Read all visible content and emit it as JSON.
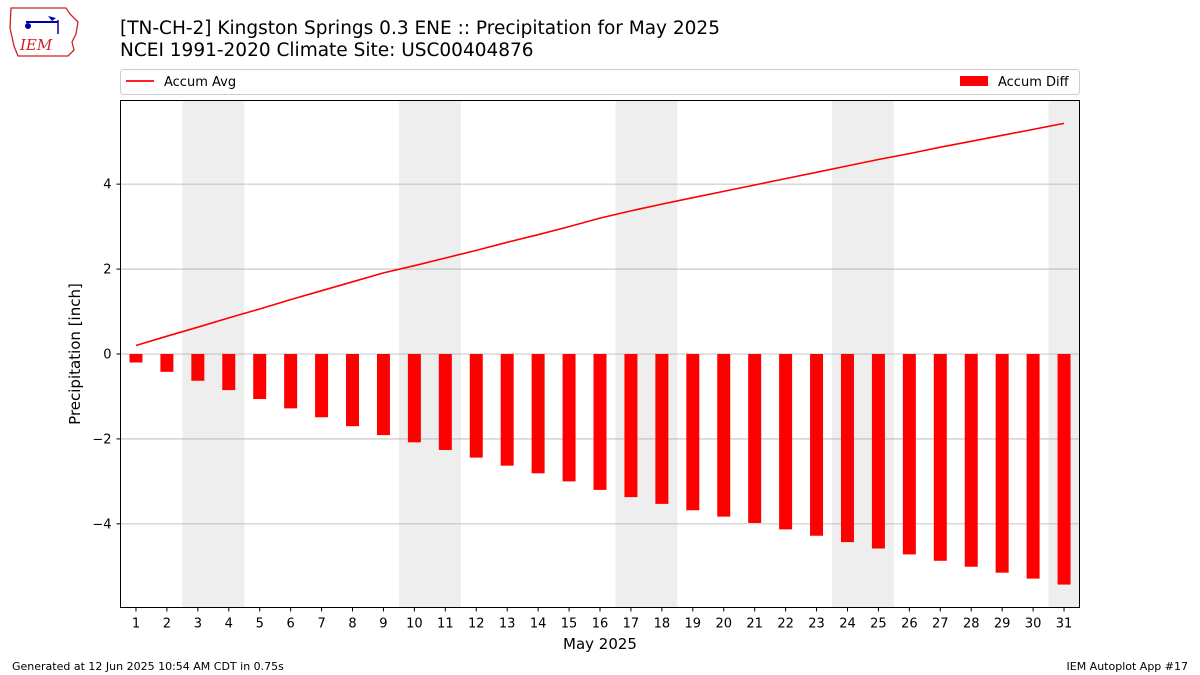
{
  "header": {
    "title_line1": "[TN-CH-2] Kingston Springs 0.3 ENE :: Precipitation for May 2025",
    "title_line2": "NCEI 1991-2020 Climate Site: USC00404876"
  },
  "logo": {
    "text": "IEM"
  },
  "footer": {
    "left": "Generated at 12 Jun 2025 10:54 AM CDT in 0.75s",
    "right": "IEM Autoplot App #17"
  },
  "colors": {
    "series": "#ff0000",
    "weekend_band": "#eeeeee",
    "grid": "#b0b0b0"
  },
  "chart_data": {
    "type": "bar",
    "xlabel": "May 2025",
    "ylabel": "Precipitation [inch]",
    "x": [
      1,
      2,
      3,
      4,
      5,
      6,
      7,
      8,
      9,
      10,
      11,
      12,
      13,
      14,
      15,
      16,
      17,
      18,
      19,
      20,
      21,
      22,
      23,
      24,
      25,
      26,
      27,
      28,
      29,
      30,
      31
    ],
    "xlim": [
      0.5,
      31.5
    ],
    "ylim": [
      -5.97,
      5.97
    ],
    "yticks": [
      -4,
      -2,
      0,
      2,
      4
    ],
    "ytick_labels": [
      "−4",
      "−2",
      "0",
      "2",
      "4"
    ],
    "grid": "horizontal",
    "legend": {
      "line_label": "Accum Avg",
      "bar_label": "Accum Diff",
      "placement": "top (above plot)"
    },
    "weekend_bands": [
      [
        3,
        4
      ],
      [
        10,
        11
      ],
      [
        17,
        18
      ],
      [
        24,
        25
      ],
      [
        31,
        31
      ]
    ],
    "series": [
      {
        "name": "Accum Avg",
        "type": "line",
        "values": [
          0.2,
          0.42,
          0.63,
          0.85,
          1.06,
          1.28,
          1.49,
          1.7,
          1.91,
          2.08,
          2.26,
          2.44,
          2.63,
          2.81,
          3.0,
          3.2,
          3.37,
          3.53,
          3.68,
          3.83,
          3.98,
          4.13,
          4.28,
          4.43,
          4.58,
          4.72,
          4.87,
          5.01,
          5.15,
          5.29,
          5.43
        ]
      },
      {
        "name": "Accum Diff",
        "type": "bar",
        "values": [
          -0.2,
          -0.42,
          -0.63,
          -0.85,
          -1.06,
          -1.28,
          -1.49,
          -1.7,
          -1.91,
          -2.08,
          -2.26,
          -2.44,
          -2.63,
          -2.81,
          -3.0,
          -3.2,
          -3.37,
          -3.53,
          -3.68,
          -3.83,
          -3.98,
          -4.13,
          -4.28,
          -4.43,
          -4.58,
          -4.72,
          -4.87,
          -5.01,
          -5.15,
          -5.29,
          -5.43
        ]
      }
    ]
  }
}
